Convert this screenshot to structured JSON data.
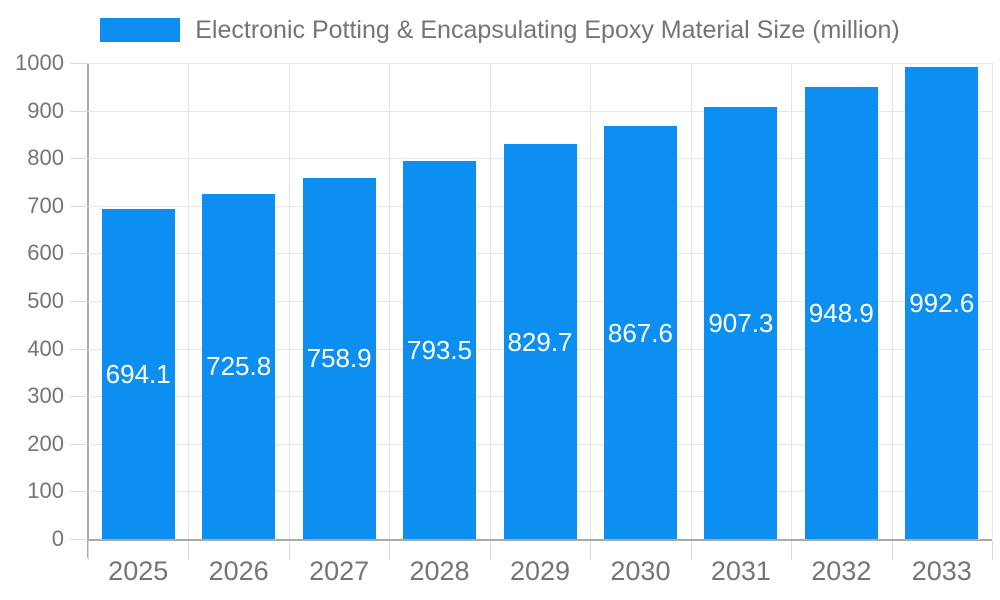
{
  "chart_data": {
    "type": "bar",
    "title": "Electronic Potting & Encapsulating Epoxy Material Size (million)",
    "legend_entries": [
      "Electronic Potting & Encapsulating Epoxy Material Size (million)"
    ],
    "legend_position": "top",
    "categories": [
      "2025",
      "2026",
      "2027",
      "2028",
      "2029",
      "2030",
      "2031",
      "2032",
      "2033"
    ],
    "values": [
      694.1,
      725.8,
      758.9,
      793.5,
      829.7,
      867.6,
      907.3,
      948.9,
      992.6
    ],
    "bar_value_labels": [
      "694.1",
      "725.8",
      "758.9",
      "793.5",
      "829.7",
      "867.6",
      "907.3",
      "948.9",
      "992.6"
    ],
    "xlabel": "",
    "ylabel": "",
    "ylim": [
      0,
      1000
    ],
    "yticks": [
      0,
      100,
      200,
      300,
      400,
      500,
      600,
      700,
      800,
      900,
      1000
    ],
    "grid": true,
    "colors": {
      "bar": "#0d8ff2",
      "bar_value_text": "#ffffff",
      "axis_text": "#757575",
      "title_text": "#757575",
      "grid_line": "#e6e6e6",
      "axis_line": "#aaaaaa",
      "tick_line": "#d9d9d9",
      "background": "#ffffff"
    }
  }
}
